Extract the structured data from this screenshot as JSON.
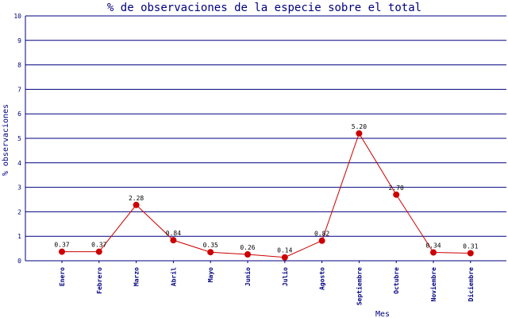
{
  "chart_data": {
    "type": "line",
    "title": "% de observaciones de la especie sobre el total",
    "xlabel": "Mes",
    "ylabel": "% observaciones",
    "categories": [
      "Enero",
      "Febrero",
      "Marzo",
      "Abril",
      "Mayo",
      "Junio",
      "Julio",
      "Agosto",
      "Septiembre",
      "Octubre",
      "Noviembre",
      "Diciembre"
    ],
    "series": [
      {
        "values": [
          0.37,
          0.37,
          2.28,
          0.84,
          0.35,
          0.26,
          0.14,
          0.82,
          5.2,
          2.7,
          0.34,
          0.31
        ],
        "labels": [
          "0.37",
          "0.37",
          "2.28",
          "0.84",
          "0.35",
          "0.26",
          "0.14",
          "0.82",
          "5.20",
          "2.70",
          "0.34",
          "0.31"
        ]
      }
    ],
    "ylim": [
      0,
      10
    ],
    "yticks": [
      "0",
      "1",
      "2",
      "3",
      "4",
      "5",
      "6",
      "7",
      "8",
      "9",
      "10"
    ],
    "grid": true,
    "colors": {
      "line": "#cc0000",
      "marker": "#cc0000",
      "grid": "#000080",
      "axis": "#000080",
      "text": "#000080"
    }
  }
}
